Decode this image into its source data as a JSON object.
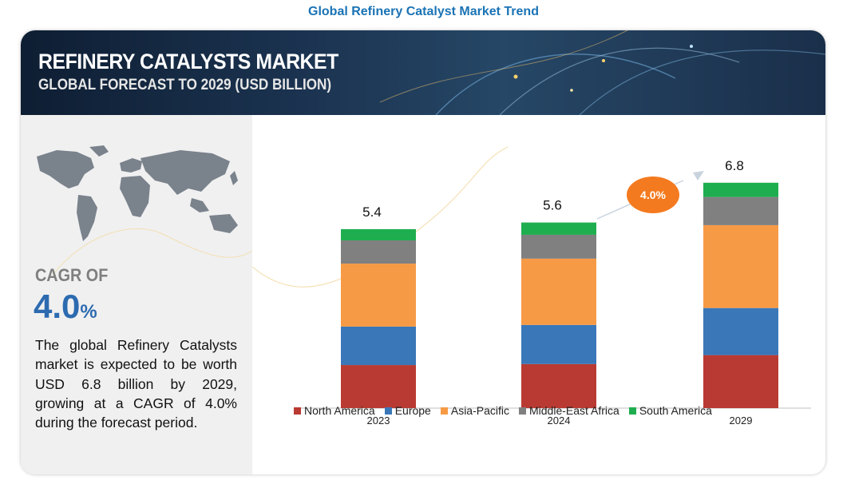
{
  "page_title": "Global Refinery Catalyst Market Trend",
  "banner": {
    "title": "REFINERY CATALYSTS MARKET",
    "subtitle": "GLOBAL FORECAST TO 2029 (USD BILLION)"
  },
  "left_panel": {
    "cagr_label": "CAGR OF",
    "cagr_number": "4.0",
    "cagr_percent": "%",
    "summary": "The global Refinery Catalysts market is expected to be worth USD 6.8 billion by 2029, growing at a CAGR of 4.0% during the forecast period.",
    "map_icon": "world-map-icon"
  },
  "cagr_badge": "4.0%",
  "colors": {
    "north_america": "#b93a32",
    "europe": "#3a77b8",
    "asia_pacific": "#f79a45",
    "middle_east_africa": "#808080",
    "south_america": "#1fae4f",
    "badge": "#f47a1f",
    "accent_blue": "#2d6bb0"
  },
  "chart_data": {
    "type": "bar",
    "stacked": true,
    "categories": [
      "2023",
      "2024",
      "2029"
    ],
    "totals": [
      5.4,
      5.6,
      6.8
    ],
    "total_labels": [
      "5.4",
      "5.6",
      "6.8"
    ],
    "series": [
      {
        "name": "North America",
        "values": [
          1.3,
          1.33,
          1.6
        ]
      },
      {
        "name": "Europe",
        "values": [
          1.16,
          1.18,
          1.42
        ]
      },
      {
        "name": "Asia-Pacific",
        "values": [
          1.9,
          2.0,
          2.5
        ]
      },
      {
        "name": "Middle-East Africa",
        "values": [
          0.7,
          0.72,
          0.85
        ]
      },
      {
        "name": "South America",
        "values": [
          0.34,
          0.37,
          0.43
        ]
      }
    ],
    "legend_position": "bottom",
    "grid": false
  }
}
